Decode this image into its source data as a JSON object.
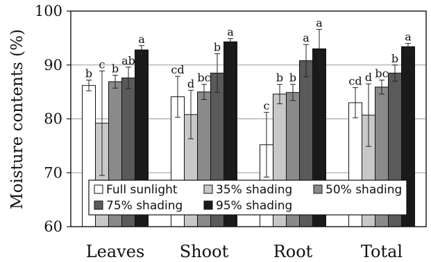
{
  "chart_data": {
    "type": "bar",
    "title": "",
    "xlabel": "",
    "ylabel": "Moisture contents (%)",
    "ylim": [
      60,
      100
    ],
    "yticks": [
      60,
      70,
      80,
      90,
      100
    ],
    "grid": true,
    "legend_position": "lower-left inside plot",
    "categories": [
      "Leaves",
      "Shoot",
      "Root",
      "Total"
    ],
    "series": [
      {
        "name": "Full sunlight",
        "color": "#ffffff",
        "values": [
          86.2,
          84.1,
          75.2,
          83.0
        ],
        "errors": [
          1.0,
          3.8,
          6.0,
          2.8
        ],
        "labels": [
          "b",
          "cd",
          "c",
          "cd"
        ]
      },
      {
        "name": "35% shading",
        "color": "#c8c8c8",
        "values": [
          79.2,
          80.8,
          84.6,
          80.7
        ],
        "errors": [
          9.7,
          4.5,
          1.8,
          5.8
        ],
        "labels": [
          "c",
          "d",
          "b",
          "d"
        ]
      },
      {
        "name": "50% shading",
        "color": "#8a8a8a",
        "values": [
          86.9,
          85.0,
          84.9,
          85.9
        ],
        "errors": [
          1.2,
          1.4,
          1.5,
          1.3
        ],
        "labels": [
          "b",
          "bc",
          "b",
          "bc"
        ]
      },
      {
        "name": "75% shading",
        "color": "#5a5a5a",
        "values": [
          87.6,
          88.5,
          90.8,
          88.5
        ],
        "errors": [
          2.0,
          3.6,
          3.0,
          1.5
        ],
        "labels": [
          "ab",
          "b",
          "a",
          "b"
        ]
      },
      {
        "name": "95% shading",
        "color": "#1a1a1a",
        "values": [
          92.8,
          94.3,
          93.0,
          93.4
        ],
        "errors": [
          0.8,
          0.6,
          3.6,
          0.6
        ],
        "labels": [
          "a",
          "a",
          "a",
          "a"
        ]
      }
    ]
  }
}
